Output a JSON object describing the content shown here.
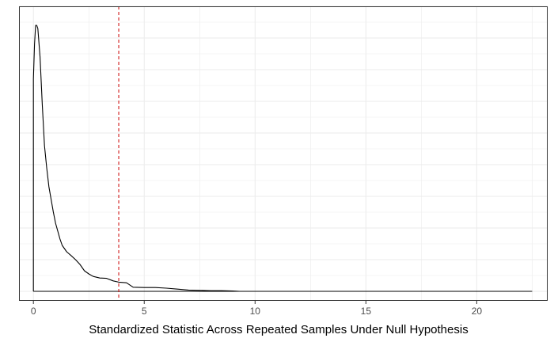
{
  "chart_data": {
    "type": "line",
    "title": "",
    "xlabel": "Standardized Statistic Across Repeated Samples Under Null Hypothesis",
    "ylabel": "",
    "xlim": [
      -0.65,
      23.2
    ],
    "ylim": [
      -0.03,
      0.9
    ],
    "x_ticks": [
      0,
      5,
      10,
      15,
      20
    ],
    "x_tick_labels": [
      "0",
      "5",
      "10",
      "15",
      "20"
    ],
    "y_tick_labels_shown": false,
    "grid": true,
    "legend": "none",
    "density_curve": {
      "x": [
        0,
        0.05,
        0.1,
        0.15,
        0.2,
        0.3,
        0.4,
        0.5,
        0.6,
        0.7,
        0.8,
        0.9,
        1.0,
        1.1,
        1.2,
        1.3,
        1.5,
        1.7,
        1.9,
        2.1,
        2.3,
        2.5,
        2.7,
        3.0,
        3.3,
        3.6,
        3.85,
        4.2,
        4.5,
        5.0,
        5.5,
        6.0,
        6.5,
        7.0,
        7.5,
        8.0,
        8.5,
        9.0,
        9.3
      ],
      "y": [
        0.67,
        0.78,
        0.84,
        0.84,
        0.83,
        0.74,
        0.59,
        0.46,
        0.39,
        0.33,
        0.29,
        0.25,
        0.215,
        0.19,
        0.165,
        0.145,
        0.125,
        0.113,
        0.1,
        0.085,
        0.065,
        0.055,
        0.047,
        0.042,
        0.041,
        0.033,
        0.029,
        0.027,
        0.013,
        0.012,
        0.012,
        0.01,
        0.007,
        0.004,
        0.003,
        0.002,
        0.002,
        0.001,
        0.0
      ],
      "baseline_x_range": [
        0,
        22.5
      ]
    },
    "reference_line": {
      "x": 3.85,
      "color": "#cc0000",
      "style": "dashed"
    },
    "colors": {
      "curve": "#000000",
      "grid": "#ebebeb",
      "panel_border": "#333333",
      "tick_text": "#4d4d4d"
    }
  }
}
